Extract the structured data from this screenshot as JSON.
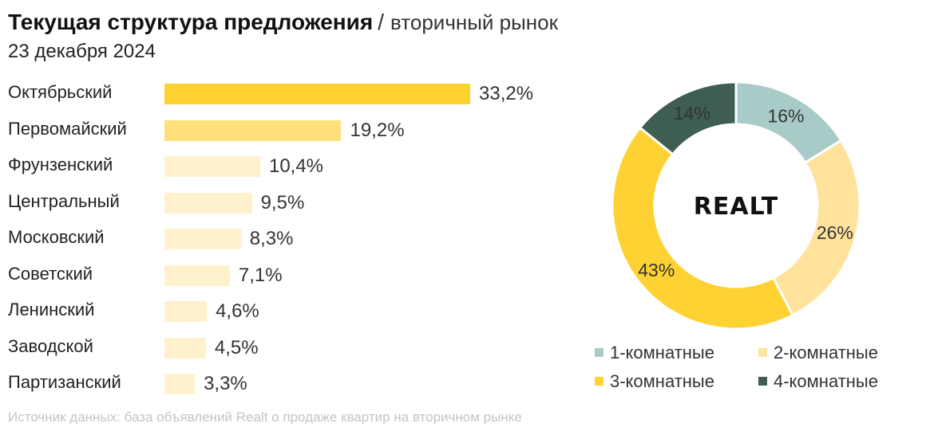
{
  "header": {
    "title": "Текущая структура предложения",
    "separator": "/",
    "subtitle": "вторичный рынок",
    "date": "23 декабря 2024"
  },
  "colors": {
    "bar_top": "#ffd233",
    "bar_second": "#ffe07a",
    "bar_rest": "#fff1cc",
    "slice_1": "#a9cbc8",
    "slice_2": "#ffe39c",
    "slice_3": "#ffd233",
    "slice_4": "#3e5e52"
  },
  "chart_data": [
    {
      "type": "bar",
      "orientation": "horizontal",
      "categories": [
        "Октябрьский",
        "Первомайский",
        "Фрунзенский",
        "Центральный",
        "Московский",
        "Советский",
        "Ленинский",
        "Заводской",
        "Партизанский"
      ],
      "values": [
        33.2,
        19.2,
        10.4,
        9.5,
        8.3,
        7.1,
        4.6,
        4.5,
        3.3
      ],
      "value_labels": [
        "33,2%",
        "19,2%",
        "10,4%",
        "9,5%",
        "8,3%",
        "7,1%",
        "4,6%",
        "4,5%",
        "3,3%"
      ],
      "grid": false
    },
    {
      "type": "pie",
      "style": "donut",
      "categories": [
        "1-комнатные",
        "2-комнатные",
        "3-комнатные",
        "4-комнатные"
      ],
      "values": [
        16,
        26,
        43,
        14
      ],
      "value_labels": [
        "16%",
        "26%",
        "43%",
        "14%"
      ],
      "center_label": "REALT",
      "legend_position": "bottom"
    }
  ],
  "source_note": "Источник данных: база объявлений Realt о продаже квартир на вторичном рынке"
}
